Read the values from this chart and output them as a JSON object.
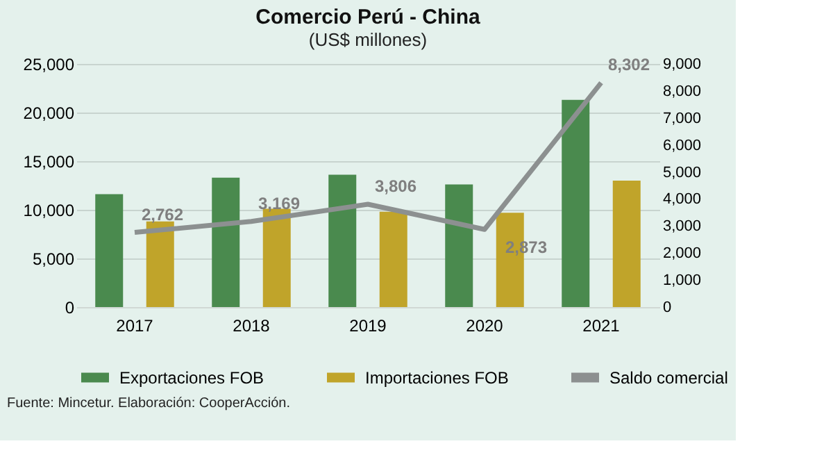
{
  "chart_data": {
    "type": "bar",
    "title": "Comercio Perú - China",
    "subtitle": "(US$ millones)",
    "categories": [
      "2017",
      "2018",
      "2019",
      "2020",
      "2021"
    ],
    "series": [
      {
        "name": "Exportaciones FOB",
        "color": "#4a8a4e",
        "values": [
          11600,
          13300,
          13600,
          12600,
          21300
        ]
      },
      {
        "name": "Importaciones FOB",
        "color": "#c0a42a",
        "values": [
          8800,
          10100,
          9800,
          9700,
          13000
        ]
      },
      {
        "name": "Saldo comercial",
        "type": "line",
        "axis": "y2",
        "color": "#8c9090",
        "values": [
          2762,
          3169,
          3806,
          2873,
          8302
        ],
        "value_labels": [
          "2,762",
          "3,169",
          "3,806",
          "2,873",
          "8,302"
        ]
      }
    ],
    "ylim": [
      0,
      25000
    ],
    "yticks": [
      {
        "value": 0,
        "label": "0"
      },
      {
        "value": 5000,
        "label": "5,000"
      },
      {
        "value": 10000,
        "label": "10,000"
      },
      {
        "value": 15000,
        "label": "15,000"
      },
      {
        "value": 20000,
        "label": "20,000"
      },
      {
        "value": 25000,
        "label": "25,000"
      }
    ],
    "y2lim": [
      0,
      9000
    ],
    "y2ticks": [
      {
        "value": 0,
        "label": "0"
      },
      {
        "value": 1000,
        "label": "1,000"
      },
      {
        "value": 2000,
        "label": "2,000"
      },
      {
        "value": 3000,
        "label": "3,000"
      },
      {
        "value": 4000,
        "label": "4,000"
      },
      {
        "value": 5000,
        "label": "5,000"
      },
      {
        "value": 6000,
        "label": "6,000"
      },
      {
        "value": 7000,
        "label": "7,000"
      },
      {
        "value": 8000,
        "label": "8,000"
      },
      {
        "value": 9000,
        "label": "9,000"
      }
    ],
    "grid": "y",
    "legend": "bottom",
    "annotations": [
      "Fuente: Mincetur. Elaboración: CooperAcción."
    ]
  }
}
